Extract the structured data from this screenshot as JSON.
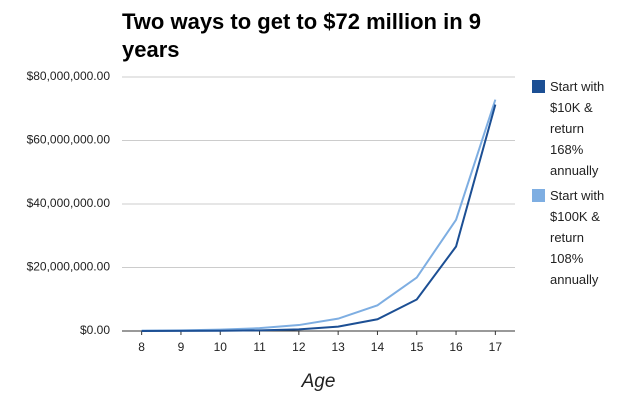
{
  "chart_data": {
    "type": "line",
    "title": "Two ways to get to $72 million in 9 years",
    "x_label": "Age",
    "x": [
      8,
      9,
      10,
      11,
      12,
      13,
      14,
      15,
      16,
      17
    ],
    "series": [
      {
        "name": "Start with $10K & return 168% annually",
        "color": "#1c4f94",
        "values": [
          10000,
          26800,
          71824,
          192488,
          515868,
          1382527,
          3705173,
          9929864,
          26612036,
          71320257
        ]
      },
      {
        "name": "Start with $100K & return 108% annually",
        "color": "#7eaee2",
        "values": [
          100000,
          208000,
          432640,
          899891,
          1871773,
          3893289,
          8098041,
          16843925,
          35035364,
          72873557
        ]
      }
    ],
    "xlim": [
      7.5,
      17.5
    ],
    "xticks": [
      8,
      9,
      10,
      11,
      12,
      13,
      14,
      15,
      16,
      17
    ],
    "ylim": [
      0,
      80000000
    ],
    "yticks": [
      {
        "value": 0,
        "label": "$0.00"
      },
      {
        "value": 20000000,
        "label": "$20,000,000.00"
      },
      {
        "value": 40000000,
        "label": "$40,000,000.00"
      },
      {
        "value": 60000000,
        "label": "$60,000,000.00"
      },
      {
        "value": 80000000,
        "label": "$80,000,000.00"
      }
    ],
    "grid": true,
    "legend_position": "right"
  }
}
